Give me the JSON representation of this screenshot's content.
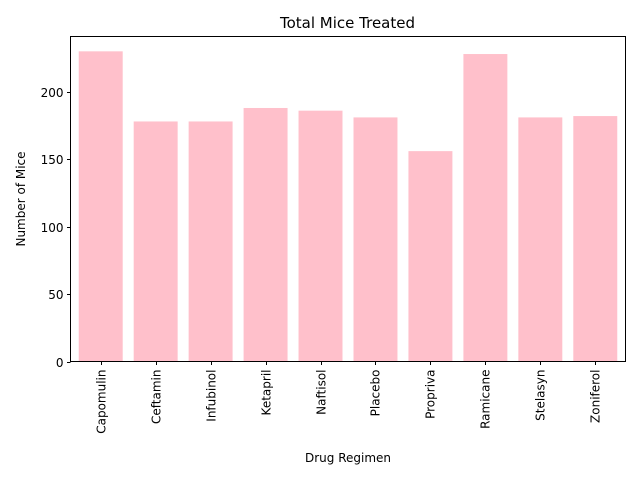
{
  "chart_data": {
    "type": "bar",
    "title": "Total Mice Treated",
    "xlabel": "Drug Regimen",
    "ylabel": "Number of Mice",
    "categories": [
      "Capomulin",
      "Ceftamin",
      "Infubinol",
      "Ketapril",
      "Naftisol",
      "Placebo",
      "Propriva",
      "Ramicane",
      "Stelasyn",
      "Zoniferol"
    ],
    "values": [
      230,
      178,
      178,
      188,
      186,
      181,
      156,
      228,
      181,
      182
    ],
    "ylim": [
      0,
      241
    ],
    "yticks": [
      0,
      50,
      100,
      150,
      200
    ],
    "bar_color": "#ffc0cb",
    "grid": false,
    "legend": "none"
  }
}
